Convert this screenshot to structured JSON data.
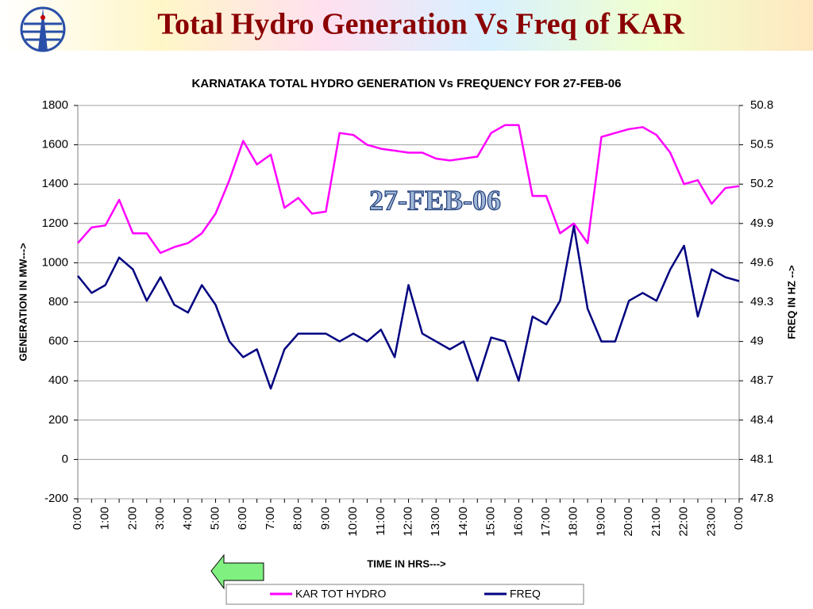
{
  "slide": {
    "title": "Total Hydro Generation Vs Freq of KAR"
  },
  "chart_data": {
    "type": "line",
    "title": "KARNATAKA TOTAL HYDRO GENERATION Vs FREQUENCY FOR 27-FEB-06",
    "annotation": "27-FEB-06",
    "xlabel": "TIME IN HRS--->",
    "ylabel": "GENERATION IN MW--->",
    "y2label": "FREQ IN HZ -->",
    "categories": [
      "0:00",
      null,
      "1:00",
      null,
      "2:00",
      null,
      "3:00",
      null,
      "4:00",
      null,
      "5:00",
      null,
      "6:00",
      null,
      "7:00",
      null,
      "8:00",
      null,
      "9:00",
      null,
      "10:00",
      null,
      "11:00",
      null,
      "12:00",
      null,
      "13:00",
      null,
      "14:00",
      null,
      "15:00",
      null,
      "16:00",
      null,
      "17:00",
      null,
      "18:00",
      null,
      "19:00",
      null,
      "20:00",
      null,
      "21:00",
      null,
      "22:00",
      null,
      "23:00",
      null,
      "0:00"
    ],
    "ylim": [
      -200,
      1800
    ],
    "yticks": [
      -200,
      0,
      200,
      400,
      600,
      800,
      1000,
      1200,
      1400,
      1600,
      1800
    ],
    "y2lim": [
      47.8,
      50.8
    ],
    "y2ticks": [
      47.8,
      48.1,
      48.4,
      48.7,
      49.0,
      49.3,
      49.6,
      49.9,
      50.2,
      50.5,
      50.8
    ],
    "grid": true,
    "series": [
      {
        "name": "KAR TOT HYDRO",
        "color": "#ff00ff",
        "values": [
          1100,
          1180,
          1190,
          1320,
          1150,
          1150,
          1050,
          1080,
          1100,
          1150,
          1250,
          1420,
          1620,
          1500,
          1550,
          1280,
          1330,
          1250,
          1260,
          1660,
          1650,
          1600,
          1580,
          1570,
          1560,
          1560,
          1530,
          1520,
          1530,
          1540,
          1660,
          1700,
          1700,
          1340,
          1340,
          1150,
          1200,
          1100,
          1640,
          1660,
          1680,
          1690,
          1650,
          1560,
          1400,
          1420,
          1300,
          1380,
          1390
        ]
      },
      {
        "name": "FREQ",
        "color": "#000080",
        "axis": "y2",
        "values": [
          49.5,
          49.37,
          49.43,
          49.64,
          49.55,
          49.31,
          49.49,
          49.28,
          49.22,
          49.43,
          49.28,
          49.0,
          48.88,
          48.94,
          48.64,
          48.94,
          49.06,
          49.06,
          49.06,
          49.0,
          49.06,
          49.0,
          49.09,
          48.88,
          49.43,
          49.06,
          49.0,
          48.94,
          49.0,
          48.7,
          49.03,
          49.0,
          48.7,
          49.19,
          49.13,
          49.31,
          49.88,
          49.25,
          49.0,
          49.0,
          49.31,
          49.37,
          49.31,
          49.55,
          49.73,
          49.19,
          49.55,
          49.49,
          49.46
        ]
      }
    ]
  }
}
